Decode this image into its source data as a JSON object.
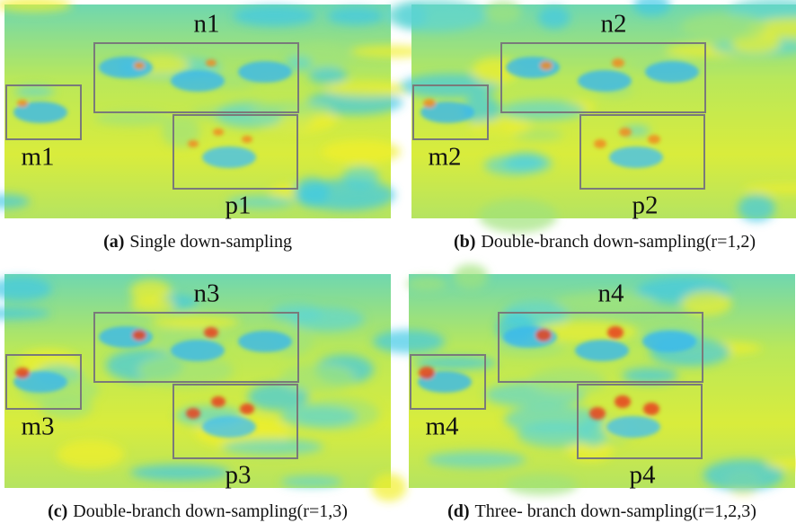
{
  "figure": {
    "panels": [
      {
        "label": "(a)",
        "caption": "Single down-sampling",
        "regions": [
          "n1",
          "m1",
          "p1"
        ]
      },
      {
        "label": "(b)",
        "caption": "Double-branch down-sampling(r=1,2)",
        "regions": [
          "n2",
          "m2",
          "p2"
        ]
      },
      {
        "label": "(c)",
        "caption": "Double-branch down-sampling(r=1,3)",
        "regions": [
          "n3",
          "m3",
          "p3"
        ]
      },
      {
        "label": "(d)",
        "caption": "Three- branch down-sampling(r=1,2,3)",
        "regions": [
          "n4",
          "m4",
          "p4"
        ]
      }
    ]
  }
}
